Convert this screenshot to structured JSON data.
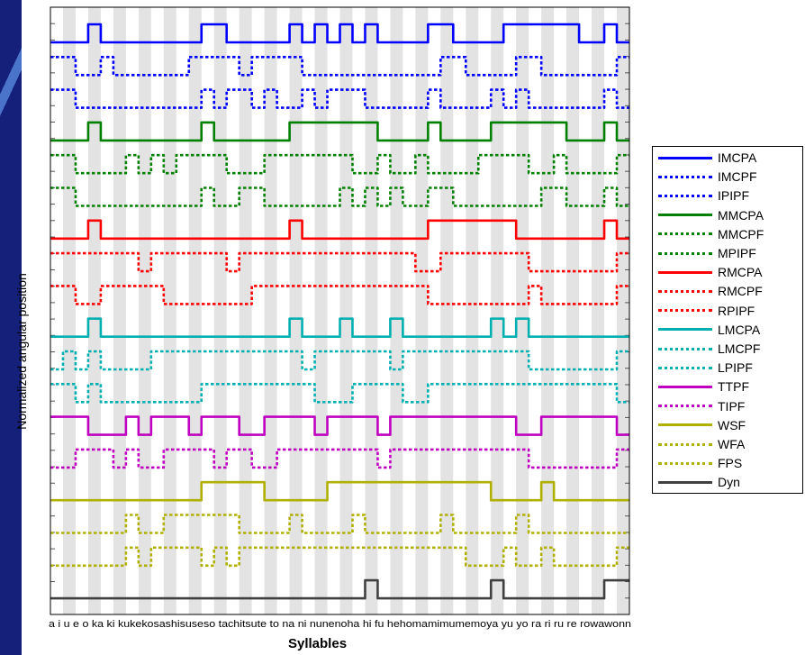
{
  "chart_data": {
    "type": "line",
    "xlabel": "Syllables",
    "ylabel": "Normalized angular position",
    "categories": [
      "a",
      "i",
      "u",
      "e",
      "o",
      "ka",
      "ki",
      "ku",
      "ke",
      "ko",
      "sa",
      "shi",
      "su",
      "se",
      "so",
      "ta",
      "chi",
      "tsu",
      "te",
      "to",
      "na",
      "ni",
      "nu",
      "ne",
      "no",
      "ha",
      "hi",
      "fu",
      "he",
      "ho",
      "ma",
      "mi",
      "mu",
      "me",
      "mo",
      "ya",
      "yu",
      "yo",
      "ra",
      "ri",
      "ru",
      "re",
      "ro",
      "wa",
      "wo",
      "nn"
    ],
    "xtick_label_text": "a i u e o ka ki kukekosashisuseso tachitsute to na ni nunenoha hi fu hehomamimumemoya yu yo ra ri ru re rowawonn",
    "grid": "vertical alternating bands",
    "series": [
      {
        "name": "IMCPA",
        "color": "#0000ff",
        "dash": "solid",
        "values": [
          0,
          0,
          0,
          1,
          0,
          0,
          0,
          0,
          0,
          0,
          0,
          0,
          1,
          1,
          0,
          0,
          0,
          0,
          0,
          1,
          0,
          1,
          0,
          1,
          0,
          1,
          0,
          0,
          0,
          0,
          1,
          1,
          0,
          0,
          0,
          0,
          1,
          1,
          1,
          1,
          1,
          1,
          0,
          0,
          1,
          0
        ]
      },
      {
        "name": "IMCPF",
        "color": "#0000ff",
        "dash": "dot",
        "values": [
          1,
          1,
          0,
          0,
          1,
          0,
          0,
          0,
          0,
          0,
          0,
          1,
          1,
          1,
          1,
          0,
          1,
          1,
          1,
          1,
          0,
          0,
          0,
          0,
          0,
          0,
          0,
          0,
          0,
          0,
          0,
          1,
          1,
          0,
          0,
          0,
          0,
          1,
          1,
          0,
          0,
          0,
          0,
          0,
          0,
          1
        ]
      },
      {
        "name": "IPIPF",
        "color": "#0000ff",
        "dash": "dot",
        "values": [
          1,
          1,
          0,
          0,
          0,
          0,
          0,
          0,
          0,
          0,
          0,
          0,
          1,
          0,
          1,
          1,
          0,
          1,
          0,
          0,
          1,
          0,
          1,
          1,
          1,
          0,
          0,
          0,
          0,
          0,
          1,
          0,
          0,
          0,
          0,
          1,
          0,
          1,
          0,
          0,
          0,
          0,
          0,
          0,
          1,
          0
        ]
      },
      {
        "name": "MMCPA",
        "color": "#008000",
        "dash": "solid",
        "values": [
          0,
          0,
          0,
          1,
          0,
          0,
          0,
          0,
          0,
          0,
          0,
          0,
          1,
          0,
          0,
          0,
          0,
          0,
          0,
          1,
          1,
          1,
          1,
          1,
          1,
          1,
          0,
          0,
          0,
          0,
          1,
          0,
          0,
          0,
          0,
          1,
          1,
          1,
          1,
          1,
          1,
          0,
          0,
          0,
          1,
          0
        ]
      },
      {
        "name": "MMCPF",
        "color": "#008000",
        "dash": "dot",
        "values": [
          1,
          1,
          0,
          0,
          0,
          0,
          1,
          0,
          1,
          0,
          1,
          1,
          1,
          1,
          0,
          0,
          0,
          1,
          1,
          1,
          1,
          1,
          1,
          1,
          0,
          0,
          1,
          0,
          0,
          1,
          0,
          0,
          0,
          0,
          1,
          1,
          1,
          1,
          0,
          0,
          1,
          0,
          0,
          0,
          0,
          1
        ]
      },
      {
        "name": "MPIPF",
        "color": "#008000",
        "dash": "dot",
        "values": [
          1,
          1,
          0,
          0,
          0,
          0,
          0,
          0,
          0,
          0,
          0,
          0,
          1,
          0,
          0,
          1,
          1,
          0,
          0,
          0,
          0,
          0,
          0,
          1,
          0,
          1,
          0,
          1,
          0,
          0,
          1,
          1,
          0,
          0,
          0,
          0,
          0,
          0,
          0,
          1,
          1,
          0,
          0,
          0,
          1,
          0
        ]
      },
      {
        "name": "RMCPA",
        "color": "#ff0000",
        "dash": "solid",
        "values": [
          0,
          0,
          0,
          1,
          0,
          0,
          0,
          0,
          0,
          0,
          0,
          0,
          0,
          0,
          0,
          0,
          0,
          0,
          0,
          1,
          0,
          0,
          0,
          0,
          0,
          0,
          0,
          0,
          0,
          0,
          1,
          1,
          1,
          1,
          1,
          1,
          1,
          0,
          0,
          0,
          0,
          0,
          0,
          0,
          1,
          0
        ]
      },
      {
        "name": "RMCPF",
        "color": "#ff0000",
        "dash": "dot",
        "values": [
          1,
          1,
          1,
          1,
          1,
          1,
          1,
          0,
          1,
          1,
          1,
          1,
          1,
          1,
          0,
          1,
          1,
          1,
          1,
          1,
          1,
          1,
          1,
          1,
          1,
          1,
          1,
          1,
          1,
          0,
          0,
          1,
          1,
          1,
          1,
          1,
          1,
          1,
          0,
          0,
          0,
          0,
          0,
          0,
          0,
          1
        ]
      },
      {
        "name": "RPIPF",
        "color": "#ff0000",
        "dash": "dot",
        "values": [
          1,
          1,
          0,
          0,
          1,
          1,
          1,
          1,
          1,
          0,
          0,
          0,
          0,
          0,
          0,
          0,
          1,
          1,
          1,
          1,
          1,
          1,
          1,
          1,
          1,
          1,
          1,
          1,
          1,
          1,
          0,
          0,
          0,
          0,
          0,
          0,
          0,
          0,
          1,
          0,
          0,
          0,
          0,
          0,
          0,
          1
        ]
      },
      {
        "name": "LMCPA",
        "color": "#00b0b0",
        "dash": "solid",
        "values": [
          0,
          0,
          0,
          1,
          0,
          0,
          0,
          0,
          0,
          0,
          0,
          0,
          0,
          0,
          0,
          0,
          0,
          0,
          0,
          1,
          0,
          0,
          0,
          1,
          0,
          0,
          0,
          1,
          0,
          0,
          0,
          0,
          0,
          0,
          0,
          1,
          0,
          1,
          0,
          0,
          0,
          0,
          0,
          0,
          0,
          0
        ]
      },
      {
        "name": "LMCPF",
        "color": "#00b0b0",
        "dash": "dot",
        "values": [
          0,
          1,
          0,
          1,
          0,
          0,
          0,
          0,
          1,
          1,
          1,
          1,
          1,
          1,
          1,
          1,
          1,
          1,
          1,
          1,
          0,
          1,
          1,
          1,
          1,
          1,
          1,
          0,
          1,
          1,
          1,
          1,
          1,
          1,
          1,
          1,
          1,
          1,
          0,
          0,
          0,
          0,
          0,
          0,
          0,
          1
        ]
      },
      {
        "name": "LPIPF",
        "color": "#00b0b0",
        "dash": "dot",
        "values": [
          1,
          1,
          0,
          1,
          0,
          0,
          0,
          0,
          0,
          0,
          0,
          0,
          1,
          1,
          1,
          1,
          1,
          1,
          1,
          1,
          1,
          0,
          0,
          0,
          1,
          1,
          1,
          1,
          0,
          0,
          1,
          1,
          1,
          1,
          1,
          1,
          1,
          1,
          1,
          1,
          1,
          1,
          1,
          1,
          1,
          0
        ]
      },
      {
        "name": "TTPF",
        "color": "#c000c0",
        "dash": "solid",
        "values": [
          1,
          1,
          1,
          0,
          0,
          0,
          1,
          0,
          1,
          1,
          1,
          0,
          1,
          1,
          1,
          0,
          0,
          1,
          1,
          1,
          1,
          0,
          1,
          1,
          1,
          1,
          0,
          1,
          1,
          1,
          1,
          1,
          1,
          1,
          1,
          1,
          1,
          0,
          0,
          1,
          1,
          1,
          1,
          1,
          1,
          0
        ]
      },
      {
        "name": "TIPF",
        "color": "#c000c0",
        "dash": "dot",
        "values": [
          0,
          0,
          1,
          1,
          1,
          0,
          1,
          0,
          0,
          1,
          1,
          1,
          1,
          0,
          1,
          1,
          0,
          0,
          1,
          1,
          1,
          1,
          1,
          1,
          1,
          1,
          0,
          1,
          1,
          1,
          1,
          1,
          1,
          1,
          1,
          1,
          1,
          1,
          0,
          0,
          0,
          0,
          0,
          0,
          0,
          1
        ]
      },
      {
        "name": "WSF",
        "color": "#b0b000",
        "dash": "solid",
        "values": [
          0,
          0,
          0,
          0,
          0,
          0,
          0,
          0,
          0,
          0,
          0,
          0,
          1,
          1,
          1,
          1,
          1,
          0,
          0,
          0,
          0,
          0,
          1,
          1,
          1,
          1,
          1,
          1,
          1,
          1,
          1,
          1,
          1,
          1,
          1,
          0,
          0,
          0,
          0,
          1,
          0,
          0,
          0,
          0,
          0,
          0
        ]
      },
      {
        "name": "WFA",
        "color": "#b0b000",
        "dash": "dot",
        "values": [
          0,
          0,
          0,
          0,
          0,
          0,
          1,
          0,
          0,
          1,
          1,
          1,
          1,
          1,
          1,
          0,
          0,
          0,
          0,
          1,
          0,
          0,
          0,
          0,
          1,
          0,
          0,
          0,
          0,
          0,
          0,
          1,
          0,
          0,
          0,
          0,
          0,
          1,
          0,
          0,
          0,
          0,
          0,
          0,
          0,
          0
        ]
      },
      {
        "name": "FPS",
        "color": "#b0b000",
        "dash": "dot",
        "values": [
          0,
          0,
          0,
          0,
          0,
          0,
          1,
          0,
          1,
          1,
          1,
          1,
          0,
          1,
          0,
          1,
          1,
          1,
          1,
          1,
          1,
          1,
          1,
          1,
          1,
          1,
          1,
          1,
          1,
          1,
          1,
          1,
          1,
          0,
          0,
          0,
          1,
          0,
          0,
          1,
          0,
          0,
          0,
          0,
          0,
          1
        ]
      },
      {
        "name": "Dyn",
        "color": "#404040",
        "dash": "solid",
        "values": [
          0,
          0,
          0,
          0,
          0,
          0,
          0,
          0,
          0,
          0,
          0,
          0,
          0,
          0,
          0,
          0,
          0,
          0,
          0,
          0,
          0,
          0,
          0,
          0,
          0,
          1,
          0,
          0,
          0,
          0,
          0,
          0,
          0,
          0,
          0,
          1,
          0,
          0,
          0,
          0,
          0,
          0,
          0,
          0,
          1,
          1
        ]
      }
    ]
  }
}
